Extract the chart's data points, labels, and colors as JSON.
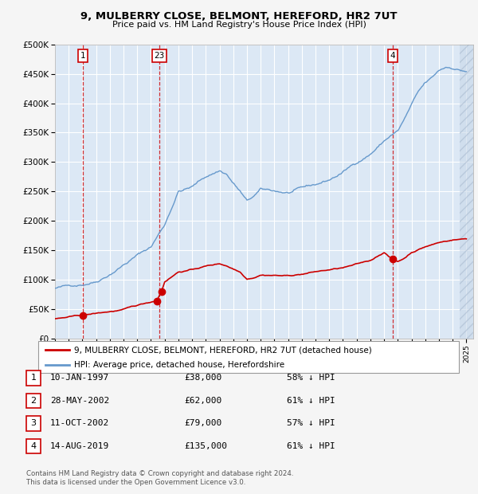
{
  "title": "9, MULBERRY CLOSE, BELMONT, HEREFORD, HR2 7UT",
  "subtitle": "Price paid vs. HM Land Registry's House Price Index (HPI)",
  "background_color": "#f5f5f5",
  "plot_bg_color": "#dce8f5",
  "grid_color": "#ffffff",
  "hpi_color": "#6699cc",
  "price_color": "#cc0000",
  "transactions": [
    {
      "num": 1,
      "date_str": "10-JAN-1997",
      "year": 1997.03,
      "price": 38000,
      "label": "1"
    },
    {
      "num": 2,
      "date_str": "28-MAY-2002",
      "year": 2002.41,
      "price": 62000,
      "label": "2"
    },
    {
      "num": 3,
      "date_str": "11-OCT-2002",
      "year": 2002.78,
      "price": 79000,
      "label": "3"
    },
    {
      "num": 4,
      "date_str": "14-AUG-2019",
      "year": 2019.62,
      "price": 135000,
      "label": "4"
    }
  ],
  "vlines": [
    {
      "x": 1997.03,
      "label": "1"
    },
    {
      "x": 2002.6,
      "label": "23"
    },
    {
      "x": 2019.62,
      "label": "4"
    }
  ],
  "table_rows": [
    {
      "num": "1",
      "date": "10-JAN-1997",
      "price": "£38,000",
      "note": "58% ↓ HPI"
    },
    {
      "num": "2",
      "date": "28-MAY-2002",
      "price": "£62,000",
      "note": "61% ↓ HPI"
    },
    {
      "num": "3",
      "date": "11-OCT-2002",
      "price": "£79,000",
      "note": "57% ↓ HPI"
    },
    {
      "num": "4",
      "date": "14-AUG-2019",
      "price": "£135,000",
      "note": "61% ↓ HPI"
    }
  ],
  "legend_labels": [
    "9, MULBERRY CLOSE, BELMONT, HEREFORD, HR2 7UT (detached house)",
    "HPI: Average price, detached house, Herefordshire"
  ],
  "footer": "Contains HM Land Registry data © Crown copyright and database right 2024.\nThis data is licensed under the Open Government Licence v3.0.",
  "ylim": [
    0,
    500000
  ],
  "yticks": [
    0,
    50000,
    100000,
    150000,
    200000,
    250000,
    300000,
    350000,
    400000,
    450000,
    500000
  ],
  "xlim_start": 1995.0,
  "xlim_end": 2025.5,
  "hatch_start": 2024.5
}
